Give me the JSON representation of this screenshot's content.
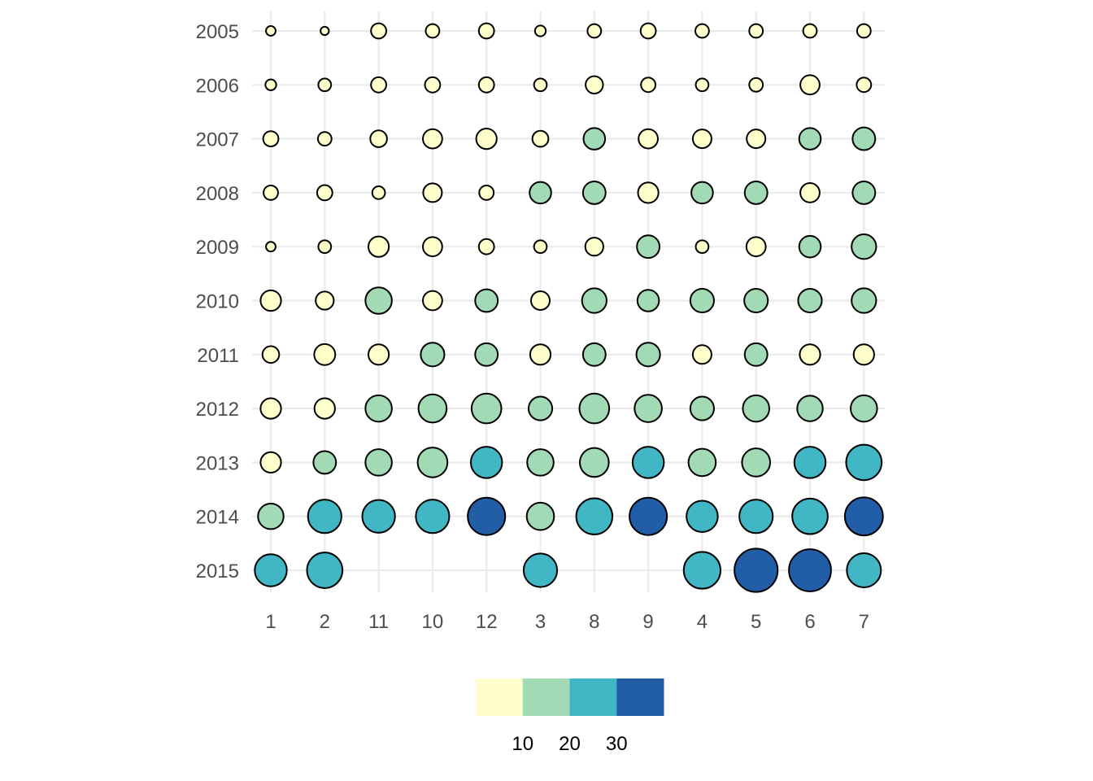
{
  "chart_data": {
    "type": "scatter",
    "x_categories": [
      "1",
      "2",
      "11",
      "10",
      "12",
      "3",
      "8",
      "9",
      "4",
      "5",
      "6",
      "7"
    ],
    "y_categories": [
      "2005",
      "2006",
      "2007",
      "2008",
      "2009",
      "2010",
      "2011",
      "2012",
      "2013",
      "2014",
      "2015"
    ],
    "values": [
      [
        2,
        1.5,
        5,
        4,
        5,
        2.5,
        4,
        5,
        4,
        4,
        4,
        4
      ],
      [
        2.5,
        3.5,
        5,
        5,
        5,
        3.5,
        6.5,
        4.5,
        3.5,
        4,
        8,
        4.5
      ],
      [
        5,
        4,
        6,
        8,
        9,
        5.5,
        10,
        8,
        7.5,
        7.5,
        10,
        11
      ],
      [
        4.5,
        5,
        3.5,
        7.5,
        4.5,
        10,
        11,
        9,
        10,
        11,
        8,
        11
      ],
      [
        2,
        3.5,
        9,
        8,
        5,
        3.5,
        7,
        11,
        3.5,
        8,
        10,
        13
      ],
      [
        9,
        7,
        15,
        8,
        11,
        7.5,
        13,
        10,
        12,
        12,
        12,
        13
      ],
      [
        6,
        9.5,
        9,
        12,
        11,
        9,
        11,
        12,
        7.5,
        11,
        9,
        9
      ],
      [
        9,
        9,
        15,
        17,
        19,
        12,
        19,
        16,
        12,
        15,
        14,
        15
      ],
      [
        9,
        11,
        15,
        19,
        21,
        15,
        18,
        21,
        16,
        17,
        21,
        27
      ],
      [
        14,
        24,
        23,
        24,
        30,
        16,
        28,
        30,
        21,
        24,
        27,
        31
      ],
      [
        22,
        27,
        null,
        null,
        null,
        24,
        null,
        null,
        29,
        40,
        38,
        25
      ]
    ],
    "legend": {
      "labels": [
        "10",
        "20",
        "30"
      ],
      "bin_colors": [
        "#ffffcc",
        "#a1dab4",
        "#41b6c4",
        "#225ea8"
      ],
      "position": "bottom"
    },
    "grid": true
  }
}
